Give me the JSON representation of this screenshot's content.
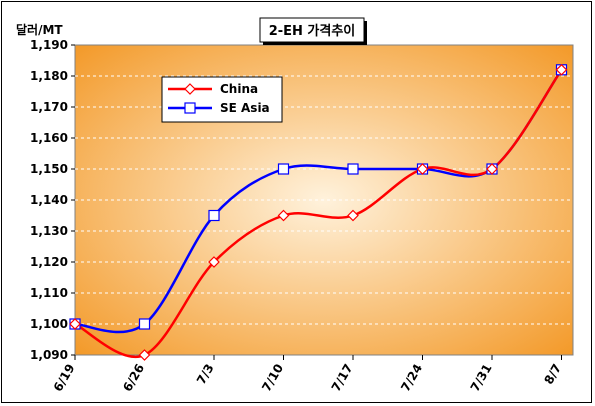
{
  "chart_data": {
    "type": "line",
    "title": "2-EH 가격추이",
    "ylabel": "달러/MT",
    "xlabel": "",
    "categories": [
      "6/19",
      "6/26",
      "7/3",
      "7/10",
      "7/17",
      "7/24",
      "7/31",
      "8/7"
    ],
    "ylim": [
      1090,
      1190
    ],
    "yticks": [
      1090,
      1100,
      1110,
      1120,
      1130,
      1140,
      1150,
      1160,
      1170,
      1180,
      1190
    ],
    "ytick_labels": [
      "1,090",
      "1,100",
      "1,110",
      "1,120",
      "1,130",
      "1,140",
      "1,150",
      "1,160",
      "1,170",
      "1,180",
      "1,190"
    ],
    "grid": true,
    "legend_position": "top-left",
    "series": [
      {
        "name": "China",
        "color": "#ff0000",
        "marker": "diamond",
        "values": [
          1100,
          1090,
          1120,
          1135,
          1135,
          1150,
          1150,
          1182
        ]
      },
      {
        "name": "SE Asia",
        "color": "#0000ff",
        "marker": "square",
        "values": [
          1100,
          1100,
          1135,
          1150,
          1150,
          1150,
          1150,
          1182
        ]
      }
    ],
    "plot_background": {
      "center": "#fff2dc",
      "edge": "#f39a2a"
    }
  }
}
